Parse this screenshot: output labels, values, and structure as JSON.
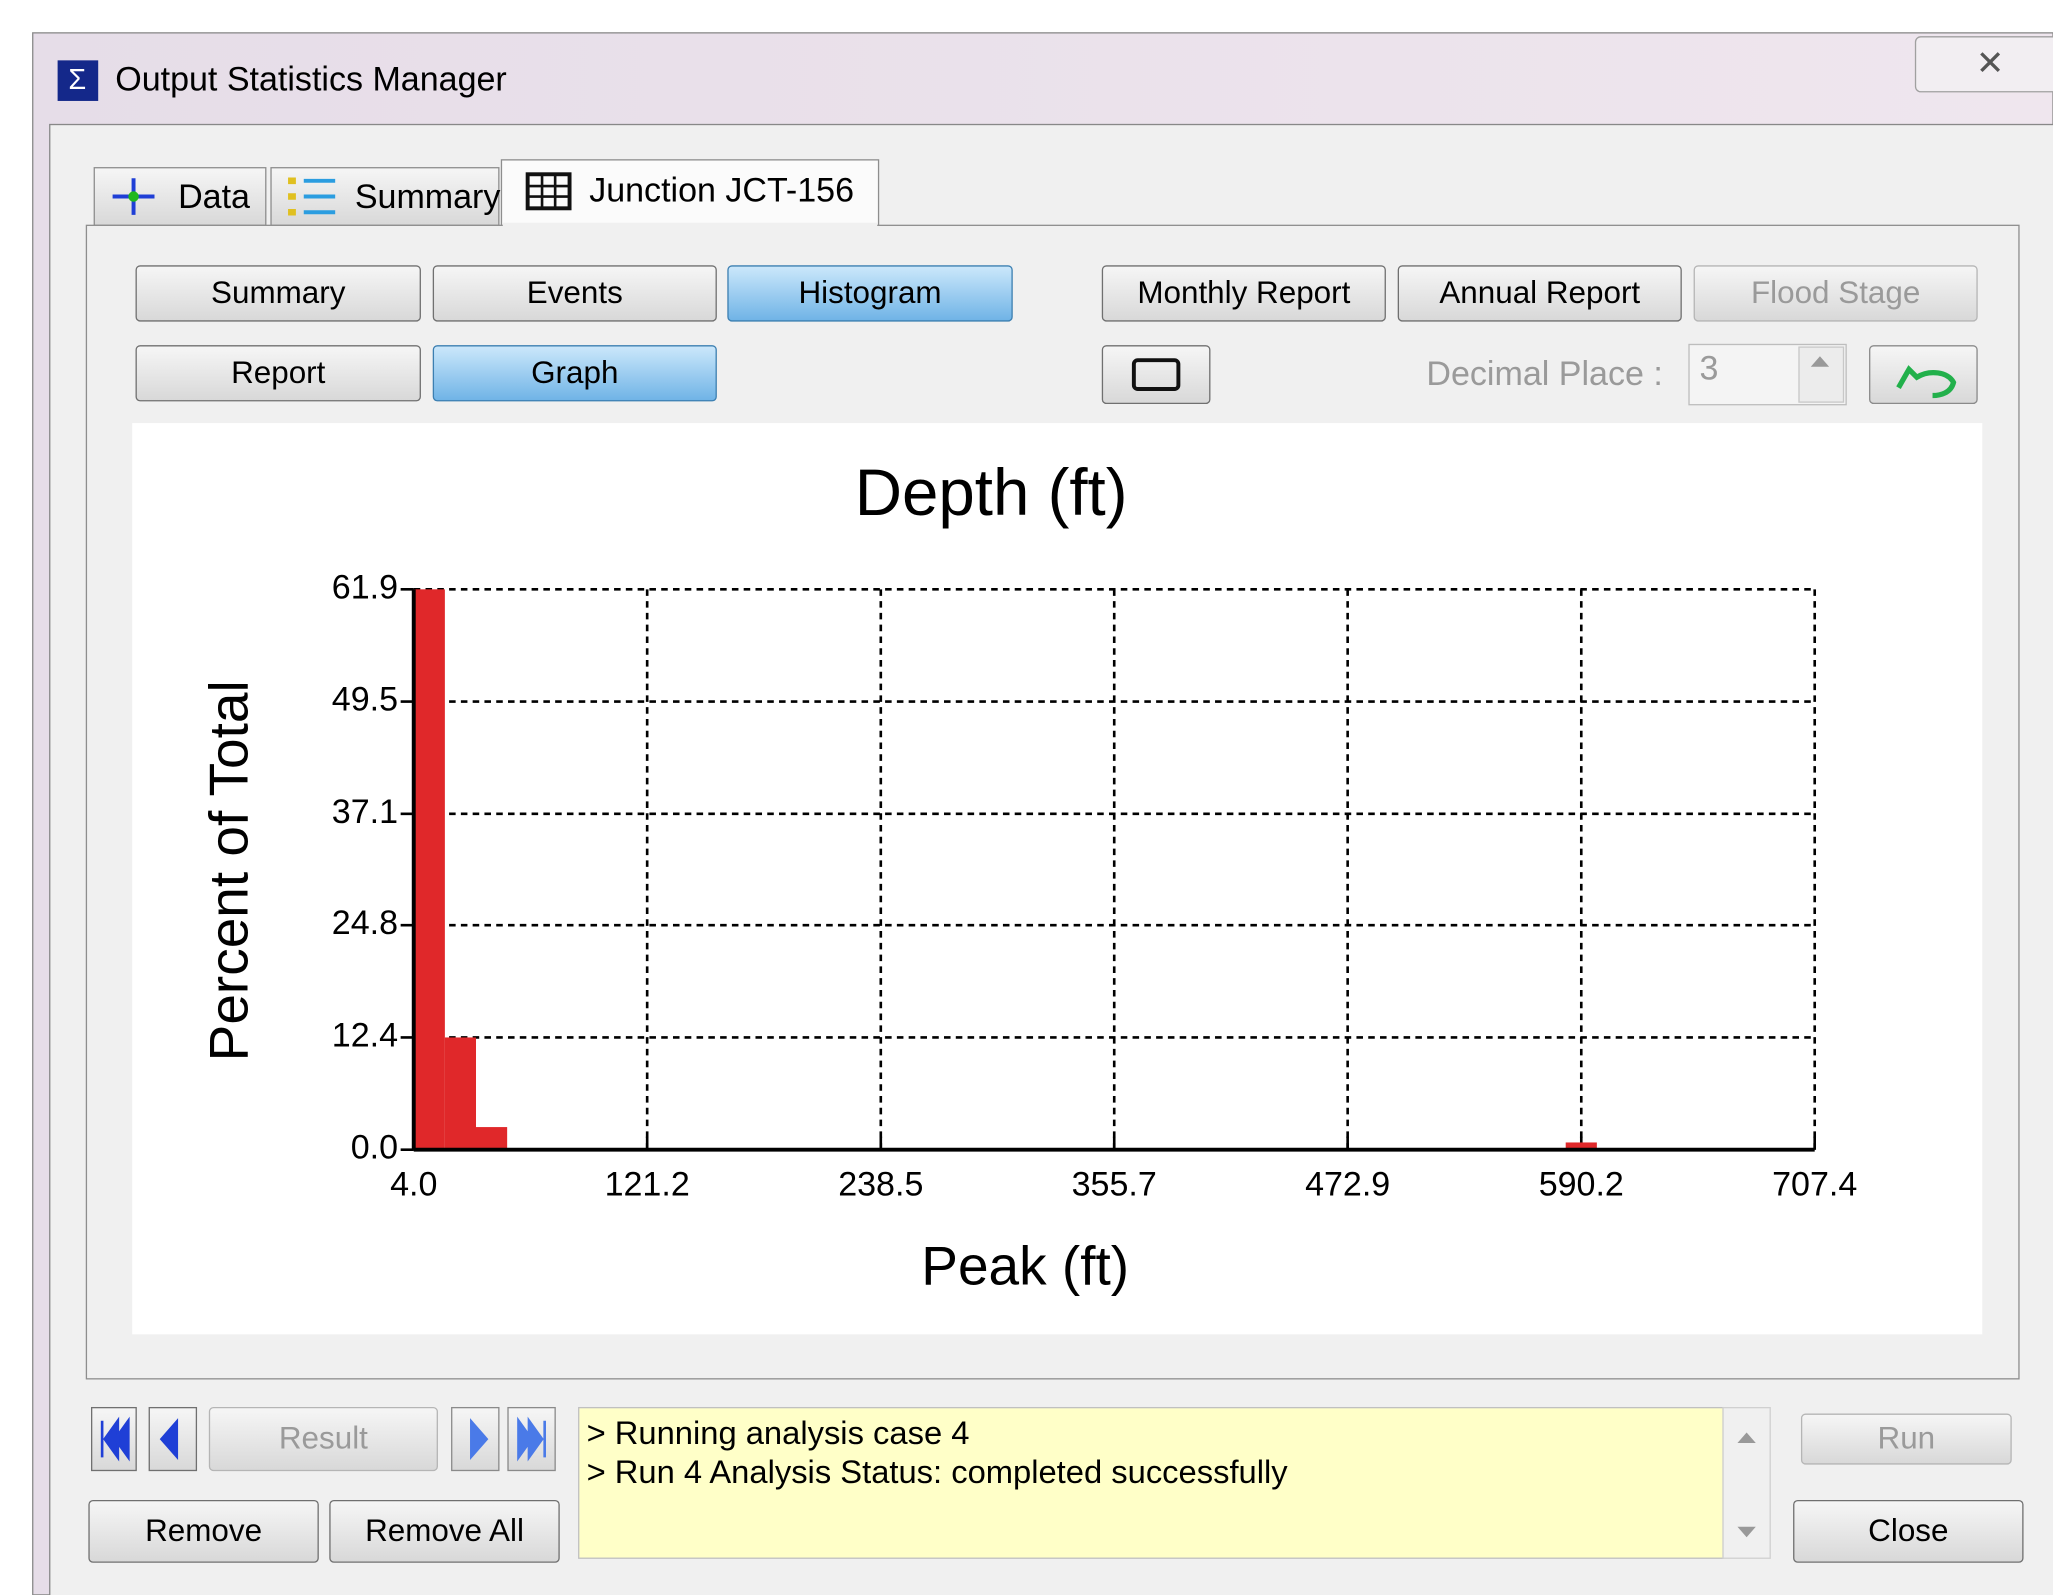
{
  "window": {
    "title": "Output Statistics Manager"
  },
  "tabs": [
    "Data",
    "Summary",
    "Junction JCT-156"
  ],
  "buttons": {
    "summary": "Summary",
    "events": "Events",
    "histogram": "Histogram",
    "report": "Report",
    "graph": "Graph",
    "monthly_report": "Monthly Report",
    "annual_report": "Annual Report",
    "flood_stage": "Flood Stage"
  },
  "decimal_place": {
    "label": "Decimal Place :",
    "value": "3"
  },
  "navigation": {
    "result": "Result"
  },
  "bottom_buttons": {
    "remove": "Remove",
    "remove_all": "Remove All",
    "run": "Run",
    "close": "Close"
  },
  "log": [
    "> Running analysis case 4",
    "> Run 4 Analysis Status: completed successfully"
  ],
  "chart_data": {
    "type": "histogram",
    "title": "Depth (ft)",
    "x_label": "Peak (ft)",
    "y_label": "Percent of Total",
    "bins": [
      4,
      19.63,
      35.26,
      50.9,
      66.53,
      82.16,
      97.79,
      113.42,
      129.06,
      144.69,
      160.32,
      175.95,
      191.58,
      207.22,
      222.85,
      238.48,
      254.11,
      269.74,
      285.38,
      301.01,
      316.64,
      332.27,
      347.9,
      363.54,
      379.17,
      394.8,
      410.43,
      426.06,
      441.7,
      457.33,
      472.96,
      488.59,
      504.22,
      519.86,
      535.49,
      551.12,
      566.75,
      582.38,
      598.02,
      613.65,
      629.28,
      644.91,
      660.54,
      676.18,
      691.81,
      707.4
    ],
    "values": [
      61.9,
      12.4,
      2.5,
      0,
      0,
      0,
      0,
      0,
      0,
      0,
      0,
      0,
      0,
      0,
      0,
      0,
      0,
      0,
      0,
      0,
      0,
      0,
      0,
      0,
      0,
      0,
      0,
      0,
      0,
      0,
      0,
      0,
      0,
      0,
      0,
      0,
      0,
      0.8,
      0,
      0,
      0,
      0,
      0,
      0,
      0
    ],
    "color": "#e0282a",
    "xlim": [
      4,
      707.4
    ],
    "ylim": [
      0,
      61.9
    ],
    "xticks": [
      {
        "value": 4,
        "label": "4.0"
      },
      121.2,
      238.5,
      355.7,
      472.9,
      590.2,
      707.4
    ],
    "yticks": [
      {
        "value": 0,
        "label": "0.0"
      },
      12.4,
      24.8,
      37.1,
      49.5,
      61.9
    ],
    "grid": true
  }
}
